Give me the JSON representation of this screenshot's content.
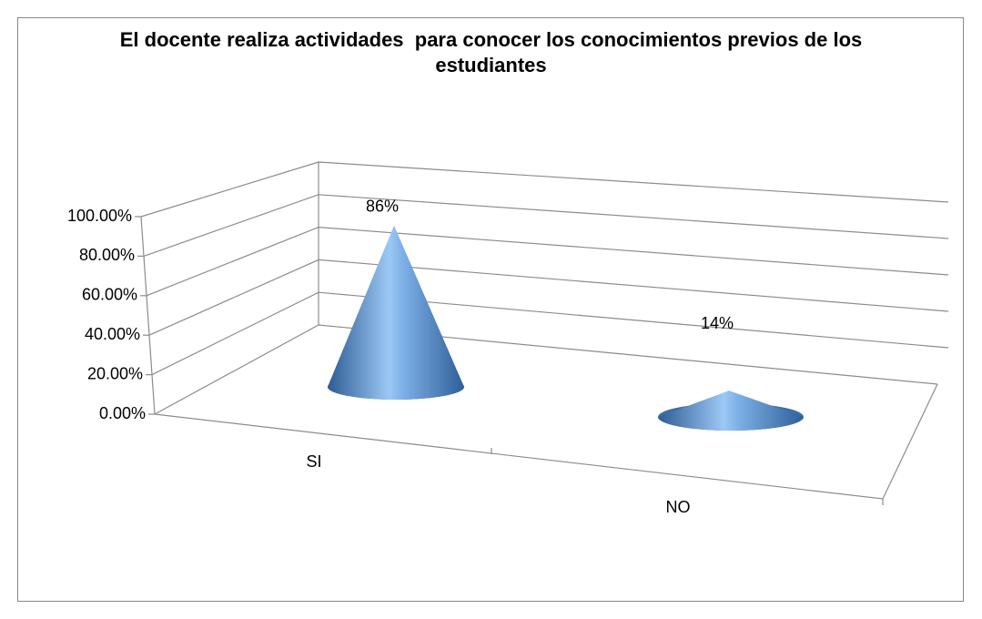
{
  "chart_data": {
    "type": "cone3d",
    "title": "El docente realiza actividades  para conocer los conocimientos previos de los estudiantes",
    "categories": [
      "SI",
      "NO"
    ],
    "values": [
      86,
      14
    ],
    "value_labels": [
      "86%",
      "14%"
    ],
    "color": "#4f81bd",
    "ylim": [
      0,
      100
    ],
    "yticks": [
      {
        "value": 0,
        "label": "0.00%"
      },
      {
        "value": 20,
        "label": "20.00%"
      },
      {
        "value": 40,
        "label": "40.00%"
      },
      {
        "value": 60,
        "label": "60.00%"
      },
      {
        "value": 80,
        "label": "80.00%"
      },
      {
        "value": 100,
        "label": "100.00%"
      }
    ],
    "grid": true
  }
}
